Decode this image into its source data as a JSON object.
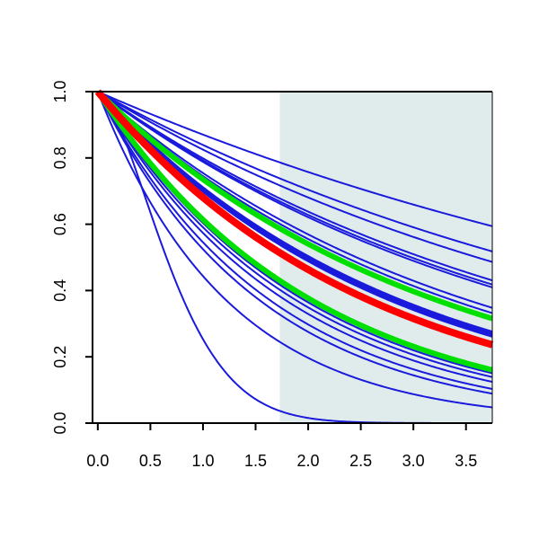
{
  "chart_data": {
    "type": "line",
    "title": "",
    "xlabel": "",
    "ylabel": "",
    "xlim": [
      -0.05,
      3.75
    ],
    "ylim": [
      0,
      1
    ],
    "x_ticks": [
      "0.0",
      "0.5",
      "1.0",
      "1.5",
      "2.0",
      "2.5",
      "3.0",
      "3.5"
    ],
    "y_ticks": [
      "0.0",
      "0.2",
      "0.4",
      "0.6",
      "0.8",
      "1.0"
    ],
    "shaded_region": {
      "x_start": 1.73,
      "x_end": 3.75,
      "color": "#e0ecec"
    },
    "grid": false,
    "legend": "none",
    "curve_form": "exp(-(x/scale)^shape)",
    "series": [
      {
        "color": "#1a1adc",
        "width": 2,
        "scale": 7.2,
        "shape": 1.0
      },
      {
        "color": "#1a1adc",
        "width": 2,
        "scale": 5.7,
        "shape": 1.0
      },
      {
        "color": "#1a1adc",
        "width": 2,
        "scale": 5.2,
        "shape": 1.0
      },
      {
        "color": "#1a1adc",
        "width": 2,
        "scale": 4.45,
        "shape": 1.0
      },
      {
        "color": "#1a1adc",
        "width": 2,
        "scale": 4.3,
        "shape": 1.0
      },
      {
        "color": "#1a1adc",
        "width": 2,
        "scale": 4.2,
        "shape": 1.0
      },
      {
        "color": "#1a1adc",
        "width": 2,
        "scale": 3.55,
        "shape": 1.0
      },
      {
        "color": "#1a1adc",
        "width": 2,
        "scale": 3.4,
        "shape": 1.0
      },
      {
        "color": "#1a1adc",
        "width": 5,
        "scale": 2.88,
        "shape": 1.0
      },
      {
        "color": "#1a1adc",
        "width": 3,
        "scale": 2.8,
        "shape": 1.0
      },
      {
        "color": "#1a1adc",
        "width": 3,
        "scale": 2.6,
        "shape": 1.0
      },
      {
        "color": "#1a1adc",
        "width": 2,
        "scale": 2.05,
        "shape": 1.0
      },
      {
        "color": "#1a1adc",
        "width": 2,
        "scale": 1.98,
        "shape": 1.0
      },
      {
        "color": "#1a1adc",
        "width": 2,
        "scale": 1.9,
        "shape": 1.0
      },
      {
        "color": "#1a1adc",
        "width": 2,
        "scale": 1.8,
        "shape": 1.0
      },
      {
        "color": "#1a1adc",
        "width": 2,
        "scale": 1.65,
        "shape": 1.0
      },
      {
        "color": "#1a1adc",
        "width": 2,
        "scale": 1.55,
        "shape": 1.0
      },
      {
        "color": "#1a1adc",
        "width": 2,
        "scale": 1.23,
        "shape": 1.0
      },
      {
        "color": "#1a1adc",
        "width": 2,
        "scale": 0.82,
        "shape": 1.6
      },
      {
        "color": "#00e000",
        "width": 6,
        "scale": 3.25,
        "shape": 1.0
      },
      {
        "color": "#00e000",
        "width": 6,
        "scale": 2.05,
        "shape": 1.0
      },
      {
        "color": "#ff0000",
        "width": 8,
        "scale": 2.6,
        "shape": 1.0
      }
    ]
  }
}
